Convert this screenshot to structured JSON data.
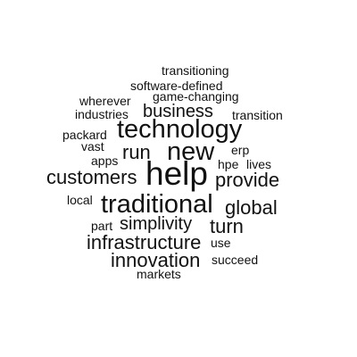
{
  "word_cloud": {
    "text_color": "#111111",
    "background": "#ffffff",
    "words": [
      "transitioning",
      "software-defined",
      "wherever",
      "game-changing",
      "industries",
      "business",
      "transition",
      "packard",
      "technology",
      "vast",
      "erp",
      "run",
      "new",
      "apps",
      "hpe",
      "lives",
      "help",
      "customers",
      "provide",
      "local",
      "traditional",
      "global",
      "part",
      "simplivity",
      "turn",
      "infrastructure",
      "use",
      "innovation",
      "succeed",
      "markets"
    ]
  }
}
